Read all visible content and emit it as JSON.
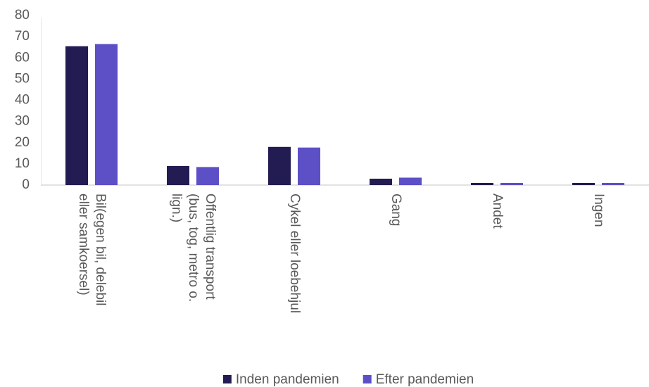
{
  "chart_data": {
    "type": "bar",
    "categories": [
      "Bil(egen bil, delebil eller samkoersel)",
      "Offentlig transport (bus, tog, metro o. lign.)",
      "Cykel eller loebehjul",
      "Gang",
      "Andet",
      "Ingen"
    ],
    "series": [
      {
        "name": "Inden pandemien",
        "color": "#221c52",
        "values": [
          65.5,
          9,
          18,
          3,
          1,
          1
        ]
      },
      {
        "name": "Efter pandemien",
        "color": "#5d4fc6",
        "values": [
          66.5,
          8.5,
          17.7,
          3.5,
          1,
          1
        ]
      }
    ],
    "ylim": [
      0,
      80
    ],
    "yticks": [
      0,
      10,
      20,
      30,
      40,
      50,
      60,
      70,
      80
    ],
    "grid": false,
    "legend": "bottom"
  }
}
